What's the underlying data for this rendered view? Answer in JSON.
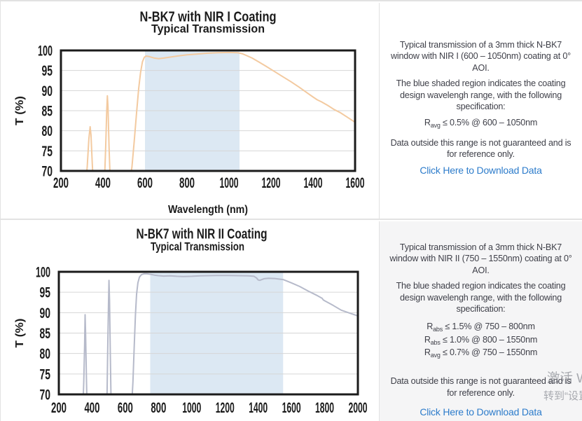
{
  "chart_data": [
    {
      "type": "line",
      "title_line1": "N-BK7 with NIR I Coating",
      "title_line2": "Typical Transmission",
      "xlabel": "Wavelength (nm)",
      "ylabel": "T (%)",
      "xlim": [
        200,
        1600
      ],
      "ylim": [
        70,
        100
      ],
      "xticks": [
        200,
        400,
        600,
        800,
        1000,
        1200,
        1400,
        1600
      ],
      "yticks": [
        70,
        75,
        80,
        85,
        90,
        95,
        100
      ],
      "grid": "horizontal",
      "shaded_region": [
        600,
        1050
      ],
      "shade_color": "#dce8f3",
      "line_color": "#f3caa0",
      "series": [
        {
          "name": "transmission",
          "points": [
            [
              318,
              67
            ],
            [
              325,
              71
            ],
            [
              333,
              78
            ],
            [
              339,
              81
            ],
            [
              343,
              79
            ],
            [
              349,
              72
            ],
            [
              354,
              67
            ],
            [
              407,
              67
            ],
            [
              413,
              76
            ],
            [
              418,
              85
            ],
            [
              421,
              88.7
            ],
            [
              424,
              86
            ],
            [
              429,
              76
            ],
            [
              435,
              67
            ],
            [
              527,
              67
            ],
            [
              538,
              71
            ],
            [
              549,
              77.5
            ],
            [
              560,
              84.5
            ],
            [
              570,
              90.5
            ],
            [
              579,
              94.5
            ],
            [
              588,
              97.2
            ],
            [
              597,
              98.3
            ],
            [
              606,
              98.6
            ],
            [
              622,
              98.45
            ],
            [
              645,
              98.1
            ],
            [
              665,
              97.95
            ],
            [
              690,
              98.1
            ],
            [
              720,
              98.35
            ],
            [
              760,
              98.65
            ],
            [
              800,
              98.9
            ],
            [
              845,
              99.1
            ],
            [
              895,
              99.3
            ],
            [
              945,
              99.42
            ],
            [
              1000,
              99.5
            ],
            [
              1040,
              99.45
            ],
            [
              1062,
              99.2
            ],
            [
              1085,
              98.7
            ],
            [
              1110,
              98.1
            ],
            [
              1140,
              97.2
            ],
            [
              1175,
              96.1
            ],
            [
              1215,
              94.8
            ],
            [
              1255,
              93.5
            ],
            [
              1295,
              92.2
            ],
            [
              1335,
              90.8
            ],
            [
              1370,
              89.5
            ],
            [
              1400,
              88.4
            ],
            [
              1420,
              87.7
            ],
            [
              1440,
              87.2
            ],
            [
              1470,
              86.3
            ],
            [
              1500,
              85.3
            ],
            [
              1530,
              84.5
            ],
            [
              1565,
              83.3
            ],
            [
              1600,
              82.1
            ]
          ]
        }
      ]
    },
    {
      "type": "line",
      "title_line1": "N-BK7 with NIR II Coating",
      "title_line2": "Typical Transmission",
      "xlabel": "",
      "ylabel": "T (%)",
      "xlim": [
        200,
        2000
      ],
      "ylim": [
        70,
        100
      ],
      "xticks": [
        200,
        400,
        600,
        800,
        1000,
        1200,
        1400,
        1600,
        1800,
        2000
      ],
      "yticks": [
        70,
        75,
        80,
        85,
        90,
        95,
        100
      ],
      "grid": "horizontal",
      "shaded_region": [
        750,
        1550
      ],
      "shade_color": "#dce8f3",
      "line_color": "#b6baca",
      "series": [
        {
          "name": "transmission",
          "points": [
            [
              345,
              67
            ],
            [
              350,
              73
            ],
            [
              355,
              82
            ],
            [
              358,
              89.5
            ],
            [
              361,
              85
            ],
            [
              366,
              74
            ],
            [
              370,
              67
            ],
            [
              489,
              67
            ],
            [
              494,
              80
            ],
            [
              499,
              92
            ],
            [
              502,
              97.9
            ],
            [
              505,
              93
            ],
            [
              510,
              80
            ],
            [
              515,
              67
            ],
            [
              638,
              67
            ],
            [
              646,
              73
            ],
            [
              654,
              82
            ],
            [
              661,
              89.5
            ],
            [
              668,
              94.5
            ],
            [
              676,
              97.3
            ],
            [
              685,
              98.7
            ],
            [
              697,
              99.3
            ],
            [
              712,
              99.5
            ],
            [
              730,
              99.5
            ],
            [
              750,
              99.4
            ],
            [
              775,
              99.2
            ],
            [
              800,
              99.05
            ],
            [
              830,
              98.95
            ],
            [
              870,
              99.0
            ],
            [
              910,
              98.9
            ],
            [
              950,
              98.85
            ],
            [
              1000,
              98.9
            ],
            [
              1050,
              99.0
            ],
            [
              1100,
              99.05
            ],
            [
              1150,
              99.1
            ],
            [
              1220,
              99.1
            ],
            [
              1280,
              99.05
            ],
            [
              1340,
              99.0
            ],
            [
              1375,
              98.9
            ],
            [
              1390,
              98.5
            ],
            [
              1400,
              98.0
            ],
            [
              1410,
              97.9
            ],
            [
              1422,
              98.1
            ],
            [
              1435,
              98.3
            ],
            [
              1460,
              98.4
            ],
            [
              1500,
              98.35
            ],
            [
              1550,
              98.1
            ],
            [
              1600,
              97.3
            ],
            [
              1650,
              96.4
            ],
            [
              1700,
              95.3
            ],
            [
              1750,
              94.3
            ],
            [
              1785,
              93.5
            ],
            [
              1792,
              93.1
            ],
            [
              1800,
              92.9
            ],
            [
              1850,
              91.8
            ],
            [
              1900,
              90.6
            ],
            [
              1950,
              89.9
            ],
            [
              2000,
              89.2
            ]
          ]
        }
      ]
    }
  ],
  "rows": [
    {
      "info": {
        "p1_lines": [
          "Typical transmission of a 3mm thick N-BK7",
          "window with NIR I (600 – 1050nm) coating at 0°",
          "AOI."
        ],
        "p2_lines": [
          "The blue shaded region indicates the coating",
          "design wavelengh range, with the following",
          "specification:"
        ],
        "specs": [
          {
            "base": "R",
            "sub": "avg",
            "rest": " ≤ 0.5% @ 600 – 1050nm"
          }
        ],
        "p3_lines": [
          "Data outside this range is not guaranteed and is",
          "for reference only."
        ],
        "link": "Click Here to Download Data"
      }
    },
    {
      "info": {
        "p1_lines": [
          "Typical transmission of a 3mm thick N-BK7",
          "window with NIR II (750 – 1550nm) coating at 0°",
          "AOI."
        ],
        "p2_lines": [
          "The blue shaded region indicates the coating",
          "design wavelengh range, with the following",
          "specification:"
        ],
        "specs": [
          {
            "base": "R",
            "sub": "abs",
            "rest": " ≤ 1.5% @ 750 – 800nm"
          },
          {
            "base": "R",
            "sub": "abs",
            "rest": " ≤ 1.0% @ 800 – 1550nm"
          },
          {
            "base": "R",
            "sub": "avg",
            "rest": " ≤ 0.7% @ 750 – 1550nm"
          }
        ],
        "p3_lines": [
          "Data outside this range is not guaranteed and is",
          "for reference only."
        ],
        "link": "Click Here to Download Data"
      }
    }
  ],
  "watermark": {
    "line1": "激活 Windows",
    "line2": "转到“设置”以激活 Windows。"
  },
  "colors": {
    "link": "#2d7ccb",
    "text": "#3f4049",
    "panel_gray": "#f5f5f6",
    "border": "#e2e2e2"
  }
}
